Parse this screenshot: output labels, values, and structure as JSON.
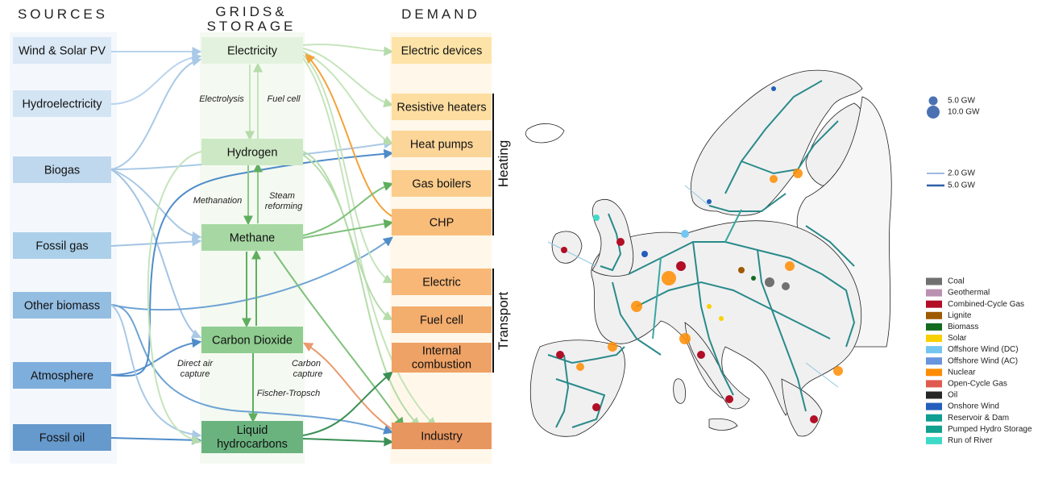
{
  "headers": {
    "sources": "SOURCES",
    "grids_line1": "GRIDS&",
    "grids_line2": "STORAGE",
    "demand": "DEMAND"
  },
  "sources": [
    {
      "label": "Wind & Solar PV",
      "color": "#dbe8f5"
    },
    {
      "label": "Hydroelectricity",
      "color": "#d3e4f3"
    },
    {
      "label": "Biogas",
      "color": "#c0d8ee"
    },
    {
      "label": "Fossil gas",
      "color": "#acd0ea"
    },
    {
      "label": "Other biomass",
      "color": "#94bde2"
    },
    {
      "label": "Atmosphere",
      "color": "#7eaedc"
    },
    {
      "label": "Fossil oil",
      "color": "#6699cc"
    }
  ],
  "grids": [
    {
      "label": "Electricity",
      "color": "#e3f2de"
    },
    {
      "label": "Hydrogen",
      "color": "#cde8c5"
    },
    {
      "label": "Methane",
      "color": "#a7d8a3"
    },
    {
      "label": "Carbon Dioxide",
      "color": "#8fcc8f"
    },
    {
      "label": "Liquid",
      "label2": "hydrocarbons",
      "color": "#6ab37f"
    }
  ],
  "demand": [
    {
      "label": "Electric devices",
      "color": "#fde3a7"
    },
    {
      "label": "Resistive heaters",
      "color": "#fddea0"
    },
    {
      "label": "Heat pumps",
      "color": "#fcd599"
    },
    {
      "label": "Gas boilers",
      "color": "#fbcc8b"
    },
    {
      "label": "CHP",
      "color": "#f9bd7a"
    },
    {
      "label": "Electric",
      "color": "#f8b777"
    },
    {
      "label": "Fuel cell",
      "color": "#f3ad6d"
    },
    {
      "label": "Internal",
      "label2": "combustion",
      "color": "#efa266"
    },
    {
      "label": "Industry",
      "color": "#e89660"
    }
  ],
  "groups": {
    "heating": "Heating",
    "transport": "Transport"
  },
  "processes": {
    "electrolysis": "Electrolysis",
    "fuel_cell": "Fuel cell",
    "methanation": "Methanation",
    "steam1": "Steam",
    "steam2": "reforming",
    "dac1": "Direct air",
    "dac2": "capture",
    "cc1": "Carbon",
    "cc2": "capture",
    "ft": "Fischer-Tropsch"
  },
  "map_legend": {
    "size_items": [
      "5.0 GW",
      "10.0 GW"
    ],
    "line_items": [
      "2.0 GW",
      "5.0 GW"
    ],
    "carriers": [
      {
        "label": "Coal",
        "color": "#707070"
      },
      {
        "label": "Geothermal",
        "color": "#ba91b1"
      },
      {
        "label": "Combined-Cycle Gas",
        "color": "#b20e26"
      },
      {
        "label": "Lignite",
        "color": "#9e5a01"
      },
      {
        "label": "Biomass",
        "color": "#146b1f"
      },
      {
        "label": "Solar",
        "color": "#f9d002"
      },
      {
        "label": "Offshore Wind (DC)",
        "color": "#74c6f2"
      },
      {
        "label": "Offshore Wind (AC)",
        "color": "#6895dd"
      },
      {
        "label": "Nuclear",
        "color": "#ff8c00"
      },
      {
        "label": "Open-Cycle Gas",
        "color": "#e05b4f"
      },
      {
        "label": "Oil",
        "color": "#262626"
      },
      {
        "label": "Onshore Wind",
        "color": "#235ebc"
      },
      {
        "label": "Reservoir & Dam",
        "color": "#0e9e93"
      },
      {
        "label": "Pumped Hydro Storage",
        "color": "#10a08d"
      },
      {
        "label": "Run of River",
        "color": "#3dd9c9"
      }
    ]
  }
}
